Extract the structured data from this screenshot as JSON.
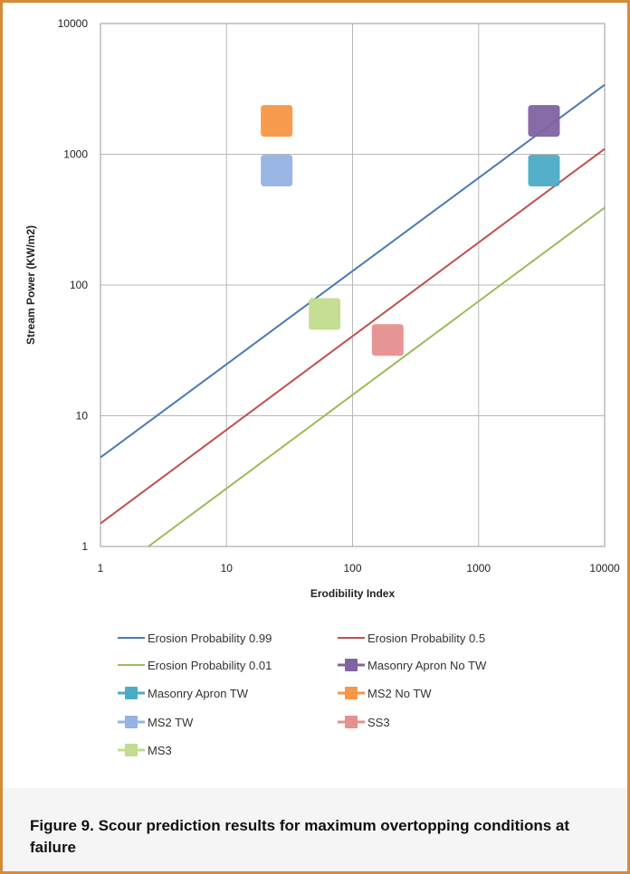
{
  "chart_data": {
    "type": "scatter",
    "x_scale": "log",
    "y_scale": "log",
    "xlabel": "Erodibility Index",
    "ylabel": "Stream Power (KW/m2)",
    "xlim": [
      1,
      10000
    ],
    "ylim": [
      1,
      10000
    ],
    "x_ticks": [
      "1",
      "10",
      "100",
      "1000",
      "10000"
    ],
    "y_ticks": [
      "1",
      "10",
      "100",
      "1000",
      "10000"
    ],
    "x_tick_values": [
      1,
      10,
      100,
      1000,
      10000
    ],
    "y_tick_values": [
      1,
      10,
      100,
      1000,
      10000
    ],
    "grid": true,
    "legend_position": "bottom",
    "lines": [
      {
        "name": "Erosion Probability 0.99",
        "color": "#4a7ab5",
        "x": [
          1,
          10000
        ],
        "y": [
          4.8,
          3400
        ]
      },
      {
        "name": "Erosion Probability 0.5",
        "color": "#c0504d",
        "x": [
          1,
          10000
        ],
        "y": [
          1.5,
          1100
        ]
      },
      {
        "name": "Erosion Probability 0.01",
        "color": "#9bbb59",
        "x": [
          2.4,
          10000
        ],
        "y": [
          1,
          390
        ]
      }
    ],
    "points": [
      {
        "name": "Masonry Apron No TW",
        "color": "#8064a2",
        "x": 3300,
        "y": 1800
      },
      {
        "name": "Masonry Apron TW",
        "color": "#4bacc6",
        "x": 3300,
        "y": 750
      },
      {
        "name": "MS2 No TW",
        "color": "#f79646",
        "x": 25,
        "y": 1800
      },
      {
        "name": "MS2 TW",
        "color": "#95b3e3",
        "x": 25,
        "y": 750
      },
      {
        "name": "SS3",
        "color": "#e6908f",
        "x": 190,
        "y": 38
      },
      {
        "name": "MS3",
        "color": "#c3dc8f",
        "x": 60,
        "y": 60
      }
    ],
    "legend": [
      {
        "label": "Erosion Probability 0.99",
        "color": "#4a7ab5",
        "kind": "line"
      },
      {
        "label": "Erosion Probability 0.5",
        "color": "#c0504d",
        "kind": "line"
      },
      {
        "label": "Erosion Probability 0.01",
        "color": "#9bbb59",
        "kind": "line"
      },
      {
        "label": "Masonry Apron No TW",
        "color": "#8064a2",
        "kind": "marker"
      },
      {
        "label": "Masonry Apron TW",
        "color": "#4bacc6",
        "kind": "marker"
      },
      {
        "label": "MS2 No TW",
        "color": "#f79646",
        "kind": "marker"
      },
      {
        "label": "MS2 TW",
        "color": "#95b3e3",
        "kind": "marker"
      },
      {
        "label": "SS3",
        "color": "#e6908f",
        "kind": "marker"
      },
      {
        "label": "MS3",
        "color": "#c3dc8f",
        "kind": "marker"
      }
    ]
  },
  "caption": "Figure 9. Scour prediction results for maximum overtopping conditions at failure"
}
